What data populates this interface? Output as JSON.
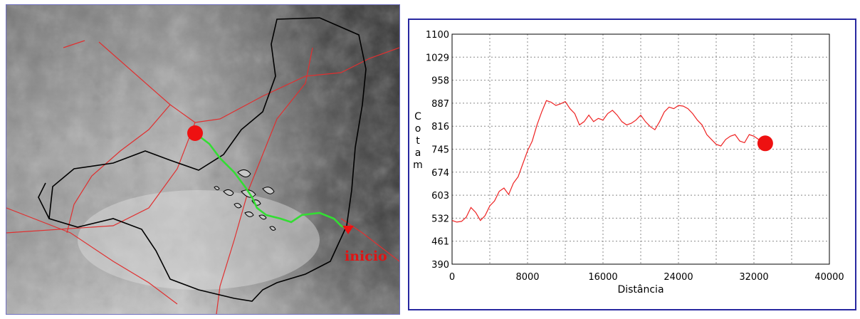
{
  "map": {
    "start_label": "inicio",
    "colors": {
      "basin_boundary": "#000000",
      "roads": "#e03030",
      "route": "#33dd33",
      "marker": "#ee1111"
    }
  },
  "chart_data": {
    "type": "line",
    "xlabel": "Distância",
    "ylabel": "Cota m",
    "xlim": [
      0,
      40000
    ],
    "ylim": [
      390,
      1100
    ],
    "x_ticks": [
      0,
      8000,
      16000,
      24000,
      32000,
      40000
    ],
    "y_ticks": [
      390,
      461,
      532,
      603,
      674,
      745,
      816,
      887,
      958,
      1029,
      1100
    ],
    "grid": true,
    "line_color": "#ee2222",
    "series": [
      {
        "x": [
          0,
          500,
          1000,
          1500,
          2000,
          2500,
          3000,
          3500,
          4000,
          4500,
          5000,
          5500,
          6000,
          6500,
          7000,
          7500,
          8000,
          8500,
          9000,
          9500,
          10000,
          10500,
          11000,
          11500,
          12000,
          12500,
          13000,
          13500,
          14000,
          14500,
          15000,
          15500,
          16000,
          16500,
          17000,
          17500,
          18000,
          18500,
          19000,
          19500,
          20000,
          20500,
          21000,
          21500,
          22000,
          22500,
          23000,
          23500,
          24000,
          24500,
          25000,
          25500,
          26000,
          26500,
          27000,
          27500,
          28000,
          28500,
          29000,
          29500,
          30000,
          30500,
          31000,
          31500,
          32000,
          32500
        ],
        "y": [
          525,
          520,
          522,
          535,
          565,
          550,
          525,
          540,
          570,
          585,
          615,
          625,
          605,
          640,
          660,
          700,
          740,
          770,
          820,
          860,
          895,
          890,
          880,
          885,
          892,
          870,
          855,
          820,
          830,
          850,
          830,
          840,
          835,
          855,
          865,
          850,
          830,
          820,
          825,
          835,
          850,
          830,
          815,
          805,
          830,
          860,
          875,
          870,
          880,
          878,
          870,
          855,
          835,
          820,
          790,
          775,
          760,
          755,
          775,
          785,
          790,
          770,
          765,
          790,
          785,
          775
        ]
      }
    ],
    "endpoint_marker": {
      "x": 33200,
      "y": 763
    }
  }
}
